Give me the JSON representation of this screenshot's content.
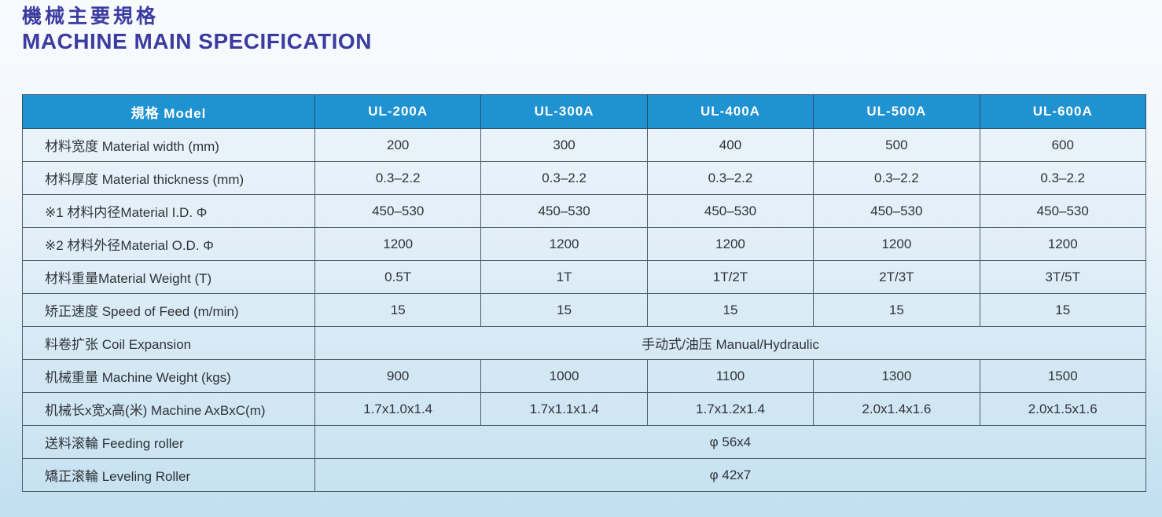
{
  "title": {
    "zh": "機械主要規格",
    "en": "MACHINE MAIN SPECIFICATION"
  },
  "colors": {
    "title_text": "#3c3ca0",
    "header_bg": "#1f92d2",
    "header_text": "#ffffff",
    "table_border": "#4e5f6a",
    "body_text": "#2e3338",
    "page_bg_top": "#f8fbfe",
    "page_bg_bottom": "#c2dff0"
  },
  "table": {
    "header": [
      "規格 Model",
      "UL-200A",
      "UL-300A",
      "UL-400A",
      "UL-500A",
      "UL-600A"
    ],
    "rows": [
      {
        "label": "材料宽度 Material width (mm)",
        "values": [
          "200",
          "300",
          "400",
          "500",
          "600"
        ]
      },
      {
        "label": "材料厚度 Material thickness (mm)",
        "values": [
          "0.3–2.2",
          "0.3–2.2",
          "0.3–2.2",
          "0.3–2.2",
          "0.3–2.2"
        ]
      },
      {
        "label": "※1 材料内径Material I.D. Φ",
        "values": [
          "450–530",
          "450–530",
          "450–530",
          "450–530",
          "450–530"
        ]
      },
      {
        "label": "※2 材料外径Material O.D. Φ",
        "values": [
          "1200",
          "1200",
          "1200",
          "1200",
          "1200"
        ]
      },
      {
        "label": "材料重量Material Weight (T)",
        "values": [
          "0.5T",
          "1T",
          "1T/2T",
          "2T/3T",
          "3T/5T"
        ]
      },
      {
        "label": "矫正速度 Speed of Feed (m/min)",
        "values": [
          "15",
          "15",
          "15",
          "15",
          "15"
        ]
      },
      {
        "label": "料卷扩张 Coil Expansion",
        "span": "手动式/油压 Manual/Hydraulic"
      },
      {
        "label": "机械重量 Machine Weight (kgs)",
        "values": [
          "900",
          "1000",
          "1100",
          "1300",
          "1500"
        ]
      },
      {
        "label": "机械长x宽x高(米) Machine AxBxC(m)",
        "values": [
          "1.7x1.0x1.4",
          "1.7x1.1x1.4",
          "1.7x1.2x1.4",
          "2.0x1.4x1.6",
          "2.0x1.5x1.6"
        ]
      },
      {
        "label": "送料滚輪 Feeding roller",
        "span": "φ 56x4"
      },
      {
        "label": "矯正滚輪 Leveling Roller",
        "span": "φ 42x7"
      }
    ]
  }
}
